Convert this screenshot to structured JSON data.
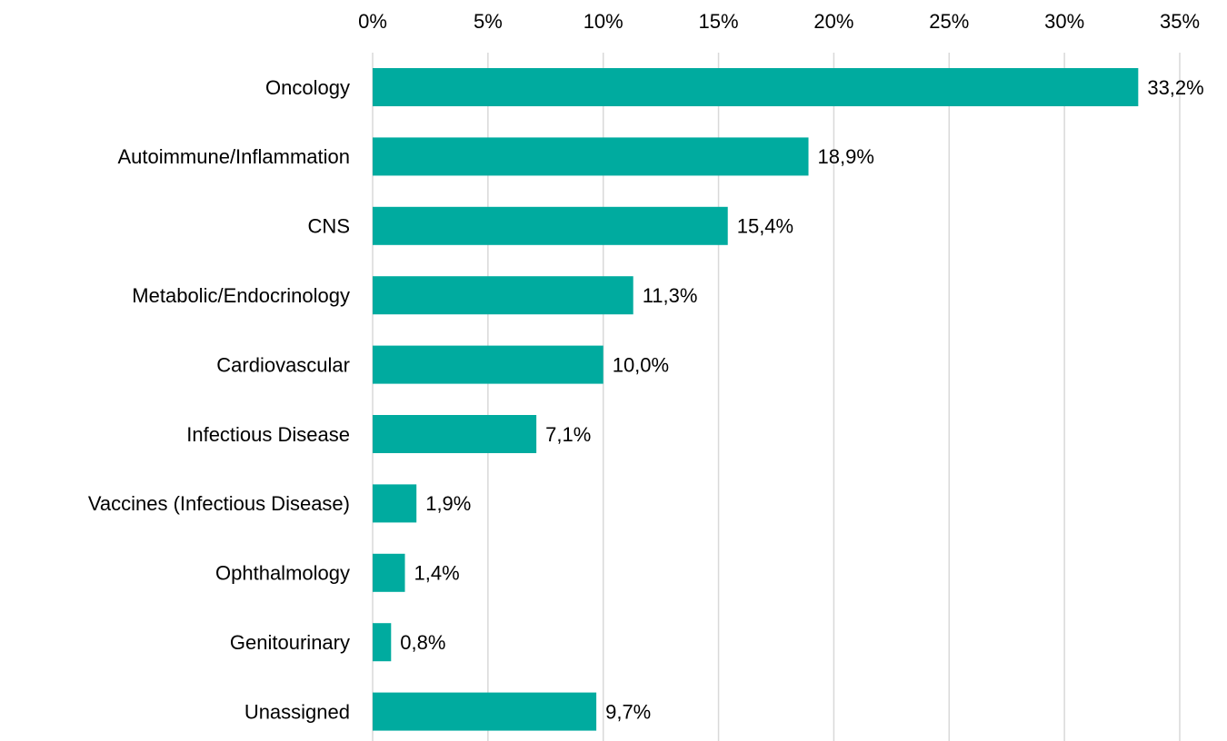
{
  "chart_data": {
    "type": "bar",
    "orientation": "horizontal",
    "categories": [
      "Oncology",
      "Autoimmune/Inflammation",
      "CNS",
      "Metabolic/Endocrinology",
      "Cardiovascular",
      "Infectious Disease",
      "Vaccines (Infectious Disease)",
      "Ophthalmology",
      "Genitourinary",
      "Unassigned"
    ],
    "values": [
      33.2,
      18.9,
      15.4,
      11.3,
      10.0,
      7.1,
      1.9,
      1.4,
      0.8,
      9.7
    ],
    "value_labels": [
      "33,2%",
      "18,9%",
      "15,4%",
      "11,3%",
      "10,0%",
      "7,1%",
      "1,9%",
      "1,4%",
      "0,8%",
      "9,7%"
    ],
    "color": "#00ab9f",
    "xlim": [
      0,
      35
    ],
    "xticks": [
      {
        "value": 0,
        "label": "0%"
      },
      {
        "value": 5,
        "label": "5%"
      },
      {
        "value": 10,
        "label": "10%"
      },
      {
        "value": 15,
        "label": "15%"
      },
      {
        "value": 20,
        "label": "20%"
      },
      {
        "value": 25,
        "label": "25%"
      },
      {
        "value": 30,
        "label": "30%"
      },
      {
        "value": 35,
        "label": "35%"
      }
    ],
    "grid": true
  }
}
